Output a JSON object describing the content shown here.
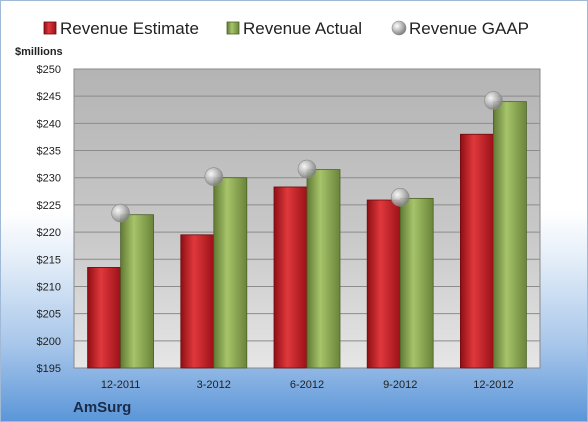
{
  "chart_data": {
    "type": "bar",
    "unit_label": "$millions",
    "categories": [
      "12-2011",
      "3-2012",
      "6-2012",
      "9-2012",
      "12-2012"
    ],
    "series": [
      {
        "name": "Revenue Estimate",
        "type": "bar",
        "color": "#c0161d",
        "values": [
          213.5,
          219.5,
          228.3,
          225.9,
          238.0
        ]
      },
      {
        "name": "Revenue Actual",
        "type": "bar",
        "color": "#8fac55",
        "values": [
          223.2,
          230.0,
          231.5,
          226.2,
          244.0
        ]
      },
      {
        "name": "Revenue GAAP",
        "type": "marker",
        "color": "#b8b8b8",
        "values": [
          223.5,
          230.2,
          231.6,
          226.4,
          244.2
        ]
      }
    ],
    "ylim": [
      195,
      250
    ],
    "ytick_step": 5,
    "ytick_labels": [
      "$195",
      "$200",
      "$205",
      "$210",
      "$215",
      "$220",
      "$225",
      "$230",
      "$235",
      "$240",
      "$245",
      "$250"
    ],
    "grid": true,
    "legend_position": "top",
    "company": "AmSurg"
  }
}
